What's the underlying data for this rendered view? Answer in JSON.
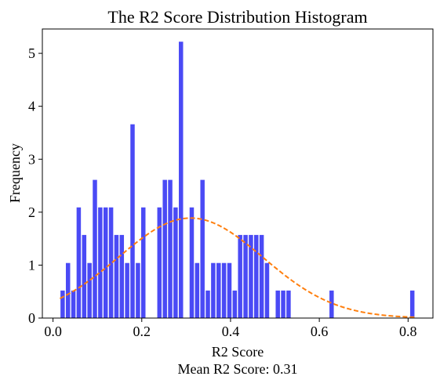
{
  "chart_data": {
    "type": "bar",
    "title": "The R2 Score Distribution Histogram",
    "xlabel": "R2 Score",
    "ylabel": "Frequency",
    "annotation": "Mean R2 Score: 0.31",
    "xlim": [
      -0.024,
      0.856
    ],
    "ylim": [
      0,
      5.46
    ],
    "xticks": [
      0.0,
      0.2,
      0.4,
      0.6,
      0.8
    ],
    "xtick_labels": [
      "0.0",
      "0.2",
      "0.4",
      "0.6",
      "0.8"
    ],
    "yticks": [
      0,
      1,
      2,
      3,
      4,
      5
    ],
    "ytick_labels": [
      "0",
      "1",
      "2",
      "3",
      "4",
      "5"
    ],
    "bin_width": 0.01212,
    "bar_fraction": 0.8,
    "bar_color": "#4a4af5",
    "curve_color": "#ff7f0e",
    "bin_centers": [
      0.0217,
      0.0338,
      0.0459,
      0.058,
      0.0702,
      0.0823,
      0.0944,
      0.1065,
      0.1186,
      0.1308,
      0.1429,
      0.155,
      0.1671,
      0.1792,
      0.1914,
      0.2035,
      0.2156,
      0.2277,
      0.2398,
      0.252,
      0.2641,
      0.2762,
      0.2883,
      0.3004,
      0.3126,
      0.3247,
      0.3368,
      0.3489,
      0.361,
      0.3732,
      0.3853,
      0.3974,
      0.4095,
      0.4216,
      0.4338,
      0.4459,
      0.458,
      0.4701,
      0.4822,
      0.4944,
      0.5065,
      0.5186,
      0.5307,
      0.5428,
      0.555,
      0.5671,
      0.5792,
      0.5913,
      0.6034,
      0.6155,
      0.6277,
      0.6398,
      0.6519,
      0.664,
      0.6761,
      0.6883,
      0.7004,
      0.7125,
      0.7246,
      0.7367,
      0.7489,
      0.761,
      0.7731,
      0.7852,
      0.7973,
      0.8095
    ],
    "values": [
      0.52,
      1.04,
      0.52,
      2.09,
      1.57,
      1.04,
      2.61,
      2.09,
      2.09,
      2.09,
      1.57,
      1.57,
      1.04,
      3.66,
      1.04,
      2.09,
      0,
      0,
      2.09,
      2.61,
      2.61,
      2.09,
      5.22,
      0,
      2.09,
      1.04,
      2.61,
      0.52,
      1.04,
      1.04,
      1.04,
      1.04,
      0.52,
      1.57,
      1.57,
      1.57,
      1.57,
      1.57,
      1.04,
      0,
      0.52,
      0.52,
      0.52,
      0,
      0,
      0,
      0,
      0,
      0,
      0,
      0.52,
      0,
      0,
      0,
      0,
      0,
      0,
      0,
      0,
      0,
      0,
      0,
      0,
      0,
      0,
      0.52
    ],
    "curve": {
      "label": "",
      "mean": 0.31,
      "std": 0.163,
      "x_range": [
        0.0156,
        0.8156
      ]
    }
  }
}
